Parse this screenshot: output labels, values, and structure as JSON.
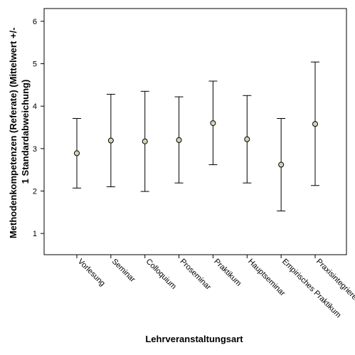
{
  "chart_data": {
    "type": "errorbar",
    "xlabel": "Lehrveranstaltungsart",
    "ylabel_lines": [
      "Methodenkompetenzen (Referate) (Mittelwert +/-",
      "1 Standardabweichung)"
    ],
    "ylim": [
      0.5,
      6.3
    ],
    "yticks": [
      1,
      2,
      3,
      4,
      5,
      6
    ],
    "ytick_labels": [
      "1",
      "2",
      "3",
      "4",
      "5",
      "6"
    ],
    "categories": [
      "Vorlesung",
      "Seminar",
      "Colloquium",
      "Proseminar",
      "Praktikum",
      "Hauptseminar",
      "Empirisches Praktikum",
      "Praxisintegrieren"
    ],
    "mean": [
      2.89,
      3.19,
      3.17,
      3.2,
      3.6,
      3.22,
      2.62,
      3.58
    ],
    "lower": [
      2.07,
      2.1,
      1.99,
      2.19,
      2.62,
      2.19,
      1.53,
      2.13
    ],
    "upper": [
      3.71,
      4.28,
      4.35,
      4.22,
      4.59,
      4.25,
      3.71,
      5.04
    ],
    "grid": false,
    "marker_color": "#d9d2b8"
  }
}
